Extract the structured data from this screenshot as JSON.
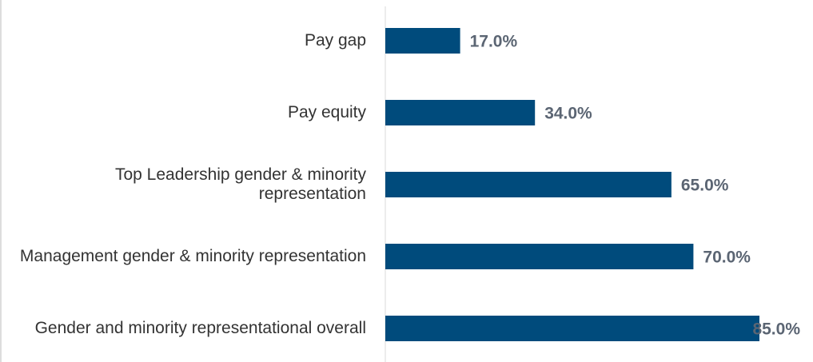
{
  "chart_data": {
    "type": "bar",
    "orientation": "horizontal",
    "categories": [
      "Pay gap",
      "Pay equity",
      "Top Leadership gender & minority representation",
      "Management gender & minority representation",
      "Gender and minority representational overall"
    ],
    "values": [
      17,
      34,
      65,
      70,
      85
    ],
    "value_labels": [
      "17.0%",
      "34.0%",
      "65.0%",
      "70.0%",
      "85.0%"
    ],
    "color": "#004b7c"
  }
}
